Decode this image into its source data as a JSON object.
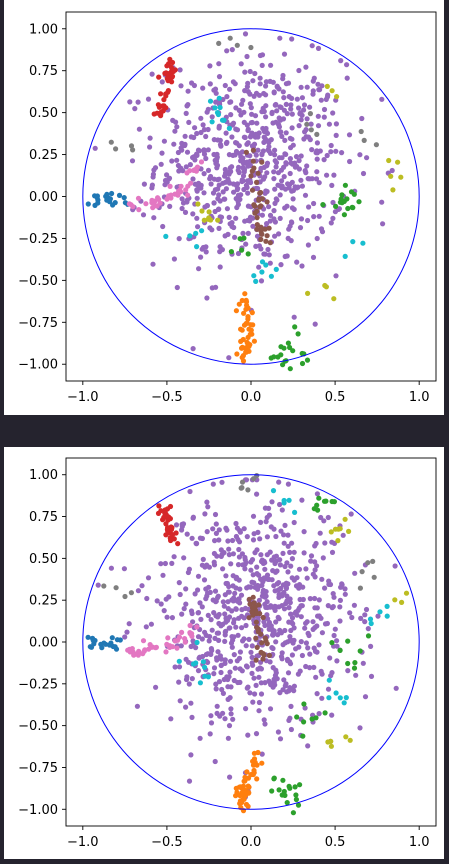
{
  "chart_data": [
    {
      "type": "scatter",
      "title": "",
      "xlabel": "",
      "ylabel": "",
      "xlim": [
        -1.1,
        1.1
      ],
      "ylim": [
        -1.1,
        1.1
      ],
      "xticks": [
        -1.0,
        -0.5,
        0.0,
        0.5,
        1.0
      ],
      "yticks": [
        -1.0,
        -0.75,
        -0.5,
        -0.25,
        0.0,
        0.25,
        0.5,
        0.75,
        1.0
      ],
      "xtick_labels": [
        "−1.0",
        "−0.5",
        "0.0",
        "0.5",
        "1.0"
      ],
      "ytick_labels": [
        "−1.00",
        "−0.75",
        "−0.50",
        "−0.25",
        "0.00",
        "0.25",
        "0.50",
        "0.75",
        "1.00"
      ],
      "grid": false,
      "unit_circle": {
        "radius": 1.0,
        "color": "#0000ff"
      },
      "clusters": [
        {
          "color": "#9467bd",
          "note": "dense central cloud",
          "cx": 0.0,
          "cy": 0.2,
          "sx": 0.28,
          "sy": 0.32,
          "n": 700
        },
        {
          "color": "#d62728",
          "arc": [
            [
              -0.55,
              0.48
            ],
            [
              -0.52,
              0.6
            ],
            [
              -0.48,
              0.72
            ],
            [
              -0.47,
              0.8
            ]
          ],
          "n": 40
        },
        {
          "color": "#ff7f0e",
          "arc": [
            [
              -0.05,
              -0.6
            ],
            [
              -0.02,
              -0.75
            ],
            [
              -0.03,
              -0.88
            ],
            [
              -0.05,
              -0.98
            ]
          ],
          "n": 45
        },
        {
          "color": "#1f77b4",
          "arc": [
            [
              -0.95,
              -0.02
            ],
            [
              -0.85,
              -0.02
            ],
            [
              -0.75,
              -0.03
            ]
          ],
          "n": 20
        },
        {
          "color": "#e377c2",
          "arc": [
            [
              -0.7,
              -0.05
            ],
            [
              -0.55,
              -0.02
            ],
            [
              -0.4,
              0.05
            ],
            [
              -0.3,
              0.2
            ]
          ],
          "n": 40
        },
        {
          "color": "#2ca02c",
          "scatter": [
            [
              0.6,
              -0.05
            ],
            [
              0.2,
              -0.95
            ],
            [
              0.25,
              -0.9
            ],
            [
              -0.05,
              -0.3
            ],
            [
              0.55,
              0.0
            ]
          ],
          "n": 40
        },
        {
          "color": "#8c564b",
          "arc": [
            [
              0.0,
              0.3
            ],
            [
              0.05,
              0.1
            ],
            [
              0.05,
              -0.1
            ],
            [
              0.1,
              -0.3
            ]
          ],
          "n": 35
        },
        {
          "color": "#17becf",
          "scatter": [
            [
              0.1,
              -0.45
            ],
            [
              -0.35,
              -0.25
            ],
            [
              0.6,
              -0.3
            ],
            [
              -0.2,
              0.5
            ]
          ],
          "n": 25
        },
        {
          "color": "#bcbd22",
          "scatter": [
            [
              0.85,
              0.15
            ],
            [
              0.45,
              -0.55
            ],
            [
              0.45,
              0.65
            ],
            [
              -0.25,
              -0.1
            ]
          ],
          "n": 20
        },
        {
          "color": "#7f7f7f",
          "scatter": [
            [
              -0.75,
              0.35
            ],
            [
              0.65,
              0.32
            ],
            [
              -0.1,
              0.9
            ],
            [
              0.35,
              0.4
            ]
          ],
          "n": 15
        }
      ]
    },
    {
      "type": "scatter",
      "title": "",
      "xlabel": "",
      "ylabel": "",
      "xlim": [
        -1.1,
        1.1
      ],
      "ylim": [
        -1.1,
        1.1
      ],
      "xticks": [
        -1.0,
        -0.5,
        0.0,
        0.5,
        1.0
      ],
      "yticks": [
        -1.0,
        -0.75,
        -0.5,
        -0.25,
        0.0,
        0.25,
        0.5,
        0.75,
        1.0
      ],
      "xtick_labels": [
        "−1.0",
        "−0.5",
        "0.0",
        "0.5",
        "1.0"
      ],
      "ytick_labels": [
        "−1.00",
        "−0.75",
        "−0.50",
        "−0.25",
        "0.00",
        "0.25",
        "0.50",
        "0.75",
        "1.00"
      ],
      "grid": false,
      "unit_circle": {
        "radius": 1.0,
        "color": "#0000ff"
      },
      "clusters": [
        {
          "color": "#9467bd",
          "note": "dense central cloud",
          "cx": 0.0,
          "cy": 0.15,
          "sx": 0.3,
          "sy": 0.35,
          "n": 750
        },
        {
          "color": "#d62728",
          "arc": [
            [
              -0.45,
              0.6
            ],
            [
              -0.5,
              0.7
            ],
            [
              -0.52,
              0.82
            ]
          ],
          "n": 35
        },
        {
          "color": "#ff7f0e",
          "arc": [
            [
              0.05,
              -0.65
            ],
            [
              0.0,
              -0.8
            ],
            [
              -0.05,
              -0.9
            ],
            [
              -0.05,
              -0.99
            ]
          ],
          "n": 50
        },
        {
          "color": "#1f77b4",
          "arc": [
            [
              -0.98,
              0.0
            ],
            [
              -0.88,
              -0.01
            ],
            [
              -0.78,
              -0.02
            ]
          ],
          "n": 20
        },
        {
          "color": "#e377c2",
          "arc": [
            [
              -0.75,
              -0.05
            ],
            [
              -0.6,
              -0.05
            ],
            [
              -0.45,
              0.0
            ],
            [
              -0.3,
              0.1
            ]
          ],
          "n": 40
        },
        {
          "color": "#2ca02c",
          "scatter": [
            [
              0.35,
              -0.45
            ],
            [
              0.2,
              -0.9
            ],
            [
              0.6,
              -0.05
            ],
            [
              0.45,
              0.8
            ]
          ],
          "n": 40
        },
        {
          "color": "#8c564b",
          "arc": [
            [
              0.0,
              0.25
            ],
            [
              0.05,
              0.05
            ],
            [
              0.08,
              -0.1
            ]
          ],
          "n": 35
        },
        {
          "color": "#17becf",
          "scatter": [
            [
              0.15,
              0.8
            ],
            [
              0.8,
              0.2
            ],
            [
              -0.3,
              -0.15
            ],
            [
              0.5,
              -0.3
            ]
          ],
          "n": 25
        },
        {
          "color": "#bcbd22",
          "scatter": [
            [
              0.9,
              0.25
            ],
            [
              0.5,
              0.65
            ],
            [
              0.5,
              -0.6
            ]
          ],
          "n": 15
        },
        {
          "color": "#7f7f7f",
          "scatter": [
            [
              -0.05,
              0.95
            ],
            [
              0.7,
              0.45
            ],
            [
              -0.8,
              0.3
            ]
          ],
          "n": 15
        }
      ]
    }
  ]
}
